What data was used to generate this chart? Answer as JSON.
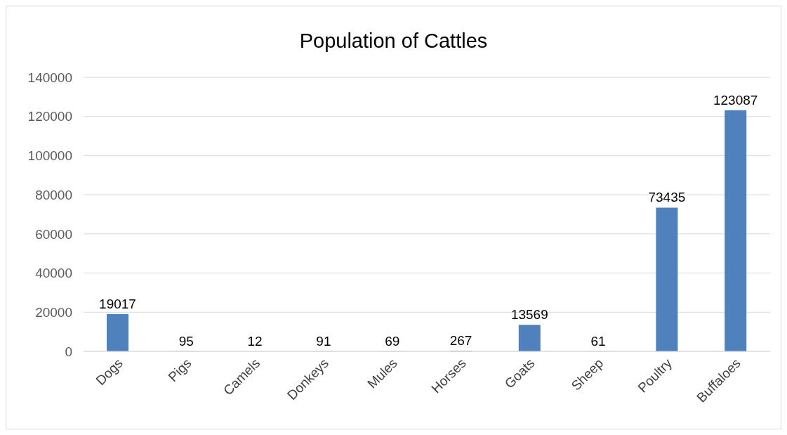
{
  "chart_data": {
    "type": "bar",
    "title": "Population of Cattles",
    "categories": [
      "Dogs",
      "Pigs",
      "Camels",
      "Donkeys",
      "Mules",
      "Horses",
      "Goats",
      "Sheep",
      "Poultry",
      "Buffaloes"
    ],
    "values": [
      19017,
      95,
      12,
      91,
      69,
      267,
      13569,
      61,
      73435,
      123087
    ],
    "color": "#4f81bd",
    "ylim": [
      0,
      140000
    ],
    "yticks": [
      0,
      20000,
      40000,
      60000,
      80000,
      100000,
      120000,
      140000
    ],
    "grid": "y",
    "data_labels": true
  }
}
